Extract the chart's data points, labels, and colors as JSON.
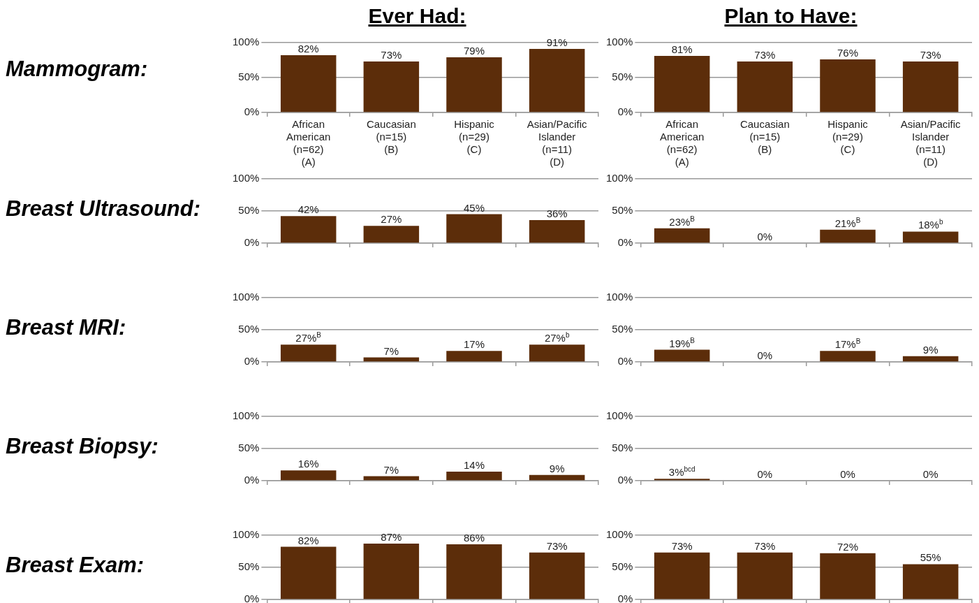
{
  "chart_data": [
    {
      "type": "bar",
      "title": "Ever Had:",
      "ylabel": "Mammogram:",
      "categories": [
        "African\nAmerican\n(n=62)\n(A)",
        "Caucasian\n(n=15)\n(B)",
        "Hispanic\n(n=29)\n(C)",
        "Asian/Pacific\nIslander\n(n=11)\n(D)"
      ],
      "values": [
        82,
        73,
        79,
        91
      ],
      "value_labels": [
        "82%",
        "73%",
        "79%",
        "91%"
      ],
      "color": "#5c2d0a",
      "ylim": [
        0,
        100
      ],
      "yticks": [
        {
          "value": 0,
          "label": "0%"
        },
        {
          "value": 50,
          "label": "50%"
        },
        {
          "value": 100,
          "label": "100%"
        }
      ],
      "grid": "y",
      "legend": false
    },
    {
      "type": "bar",
      "title": "Plan to Have:",
      "categories": [
        "African\nAmerican\n(n=62)\n(A)",
        "Caucasian\n(n=15)\n(B)",
        "Hispanic\n(n=29)\n(C)",
        "Asian/Pacific\nIslander\n(n=11)\n(D)"
      ],
      "values": [
        81,
        73,
        76,
        73
      ],
      "value_labels": [
        "81%",
        "73%",
        "76%",
        "73%"
      ],
      "color": "#5c2d0a",
      "ylim": [
        0,
        100
      ],
      "yticks": [
        {
          "value": 0,
          "label": "0%"
        },
        {
          "value": 50,
          "label": "50%"
        },
        {
          "value": 100,
          "label": "100%"
        }
      ],
      "grid": "y",
      "legend": false
    },
    {
      "type": "bar",
      "ylabel": "Breast Ultrasound:",
      "categories": [
        null,
        null,
        null,
        null
      ],
      "values": [
        42,
        27,
        45,
        36
      ],
      "value_labels": [
        "42%",
        "27%",
        "45%",
        "36%"
      ],
      "color": "#5c2d0a",
      "ylim": [
        0,
        100
      ],
      "yticks": [
        {
          "value": 0,
          "label": "0%"
        },
        {
          "value": 50,
          "label": "50%"
        },
        {
          "value": 100,
          "label": "100%"
        }
      ],
      "grid": "y",
      "legend": false,
      "tick_labels": "y"
    },
    {
      "type": "bar",
      "categories": [
        null,
        null,
        null,
        null
      ],
      "values": [
        23,
        0,
        21,
        18
      ],
      "value_labels": [
        "23%$^{B}$",
        "0%",
        "21%$^{B}$",
        "18%$^{b}$"
      ],
      "color": "#5c2d0a",
      "ylim": [
        0,
        100
      ],
      "yticks": [
        {
          "value": 0,
          "label": "0%"
        },
        {
          "value": 50,
          "label": "50%"
        },
        {
          "value": 100,
          "label": "100%"
        }
      ],
      "grid": "y",
      "legend": false,
      "tick_labels": "y"
    },
    {
      "type": "bar",
      "ylabel": "Breast MRI:",
      "categories": [
        null,
        null,
        null,
        null
      ],
      "values": [
        27,
        7,
        17,
        27
      ],
      "value_labels": [
        "27%$^{B}$",
        "7%",
        "17%",
        "27%$^{b}$"
      ],
      "color": "#5c2d0a",
      "ylim": [
        0,
        100
      ],
      "yticks": [
        {
          "value": 0,
          "label": "0%"
        },
        {
          "value": 50,
          "label": "50%"
        },
        {
          "value": 100,
          "label": "100%"
        }
      ],
      "grid": "y",
      "legend": false,
      "tick_labels": "y"
    },
    {
      "type": "bar",
      "categories": [
        null,
        null,
        null,
        null
      ],
      "values": [
        19,
        0,
        17,
        9
      ],
      "value_labels": [
        "19%$^{B}$",
        "0%",
        "17%$^{B}$",
        "9%"
      ],
      "color": "#5c2d0a",
      "ylim": [
        0,
        100
      ],
      "yticks": [
        {
          "value": 0,
          "label": "0%"
        },
        {
          "value": 50,
          "label": "50%"
        },
        {
          "value": 100,
          "label": "100%"
        }
      ],
      "grid": "y",
      "legend": false,
      "tick_labels": "y"
    },
    {
      "type": "bar",
      "ylabel": "Breast Biopsy:",
      "categories": [
        null,
        null,
        null,
        null
      ],
      "values": [
        16,
        7,
        14,
        9
      ],
      "value_labels": [
        "16%",
        "7%",
        "14%",
        "9%"
      ],
      "color": "#5c2d0a",
      "ylim": [
        0,
        100
      ],
      "yticks": [
        {
          "value": 0,
          "label": "0%"
        },
        {
          "value": 50,
          "label": "50%"
        },
        {
          "value": 100,
          "label": "100%"
        }
      ],
      "grid": "y",
      "legend": false,
      "tick_labels": "y"
    },
    {
      "type": "bar",
      "categories": [
        null,
        null,
        null,
        null
      ],
      "values": [
        3,
        0,
        0,
        0
      ],
      "value_labels": [
        "3%$^{bcd}$",
        "0%",
        "0%",
        "0%"
      ],
      "color": "#5c2d0a",
      "ylim": [
        0,
        100
      ],
      "yticks": [
        {
          "value": 0,
          "label": "0%"
        },
        {
          "value": 50,
          "label": "50%"
        },
        {
          "value": 100,
          "label": "100%"
        }
      ],
      "grid": "y",
      "legend": false,
      "tick_labels": "y"
    },
    {
      "type": "bar",
      "ylabel": "Breast Exam:",
      "categories": [
        null,
        null,
        null,
        null
      ],
      "values": [
        82,
        87,
        86,
        73
      ],
      "value_labels": [
        "82%",
        "87%",
        "86%",
        "73%"
      ],
      "color": "#5c2d0a",
      "ylim": [
        0,
        100
      ],
      "yticks": [
        {
          "value": 0,
          "label": "0%"
        },
        {
          "value": 50,
          "label": "50%"
        },
        {
          "value": 100,
          "label": "100%"
        }
      ],
      "grid": "y",
      "legend": false,
      "tick_labels": "y"
    },
    {
      "type": "bar",
      "categories": [
        null,
        null,
        null,
        null
      ],
      "values": [
        73,
        73,
        72,
        55
      ],
      "value_labels": [
        "73%",
        "73%",
        "72%",
        "55%"
      ],
      "color": "#5c2d0a",
      "ylim": [
        0,
        100
      ],
      "yticks": [
        {
          "value": 0,
          "label": "0%"
        },
        {
          "value": 50,
          "label": "50%"
        },
        {
          "value": 100,
          "label": "100%"
        }
      ],
      "grid": "y",
      "legend": false,
      "tick_labels": "y"
    }
  ]
}
